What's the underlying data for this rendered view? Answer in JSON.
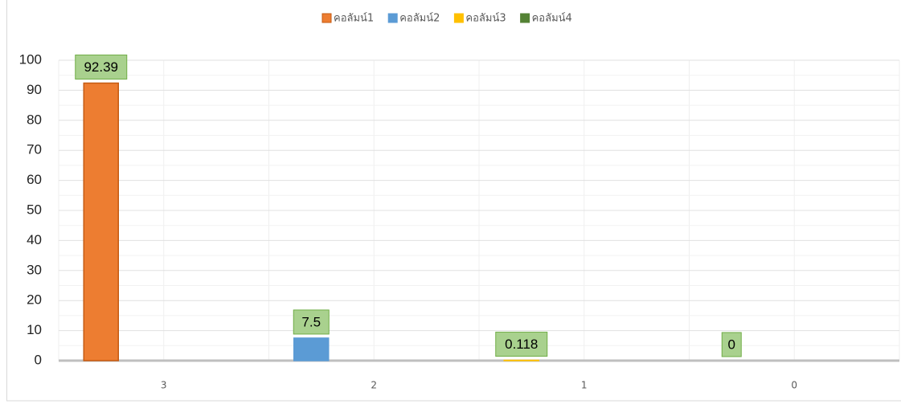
{
  "chart_data": {
    "type": "bar",
    "categories": [
      "3",
      "2",
      "1",
      "0"
    ],
    "series": [
      {
        "name": "คอลัมน์1",
        "color": "#ed7d31",
        "values": [
          92.39,
          null,
          null,
          null
        ]
      },
      {
        "name": "คอลัมน์2",
        "color": "#5b9bd5",
        "values": [
          null,
          7.5,
          null,
          null
        ]
      },
      {
        "name": "คอลัมน์3",
        "color": "#ffc000",
        "values": [
          null,
          null,
          0.118,
          null
        ]
      },
      {
        "name": "คอลัมน์4",
        "color": "#548235",
        "values": [
          null,
          null,
          null,
          0
        ]
      }
    ],
    "ylim": [
      0,
      100
    ],
    "yticks": [
      0,
      10,
      20,
      30,
      40,
      50,
      60,
      70,
      80,
      90,
      100
    ],
    "grid": true,
    "legend": "top"
  }
}
